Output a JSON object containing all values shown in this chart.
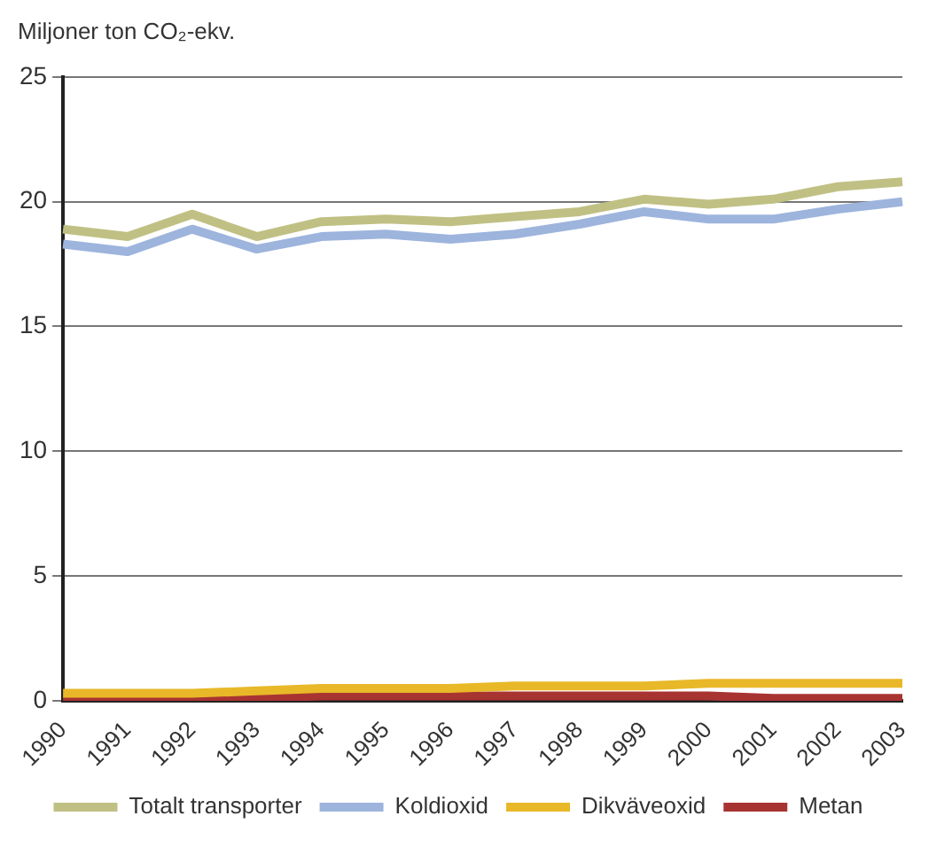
{
  "chart_data": {
    "type": "line",
    "ylabel": "Miljoner ton CO₂-ekv.",
    "categories": [
      "1990",
      "1991",
      "1992",
      "1993",
      "1994",
      "1995",
      "1996",
      "1997",
      "1998",
      "1999",
      "2000",
      "2001",
      "2002",
      "2003"
    ],
    "series": [
      {
        "name": "Totalt transporter",
        "color": "#c0c084",
        "values": [
          18.9,
          18.6,
          19.5,
          18.6,
          19.2,
          19.3,
          19.2,
          19.4,
          19.6,
          20.1,
          19.9,
          20.1,
          20.6,
          20.8
        ]
      },
      {
        "name": "Koldioxid",
        "color": "#9db4dc",
        "values": [
          18.3,
          18.0,
          18.9,
          18.1,
          18.6,
          18.7,
          18.5,
          18.7,
          19.1,
          19.6,
          19.3,
          19.3,
          19.7,
          20.0
        ]
      },
      {
        "name": "Dikväveoxid",
        "color": "#e8b828",
        "values": [
          0.3,
          0.3,
          0.3,
          0.4,
          0.5,
          0.5,
          0.5,
          0.6,
          0.6,
          0.6,
          0.7,
          0.7,
          0.7,
          0.7
        ]
      },
      {
        "name": "Metan",
        "color": "#a83432",
        "values": [
          0.1,
          0.1,
          0.1,
          0.1,
          0.2,
          0.2,
          0.2,
          0.2,
          0.2,
          0.2,
          0.2,
          0.1,
          0.1,
          0.1
        ]
      }
    ],
    "ylim": [
      0,
      25
    ],
    "yticks": [
      0,
      5,
      10,
      15,
      20,
      25
    ],
    "grid": "y",
    "legend": "bottom",
    "marker": "none",
    "line_style": "solid"
  }
}
